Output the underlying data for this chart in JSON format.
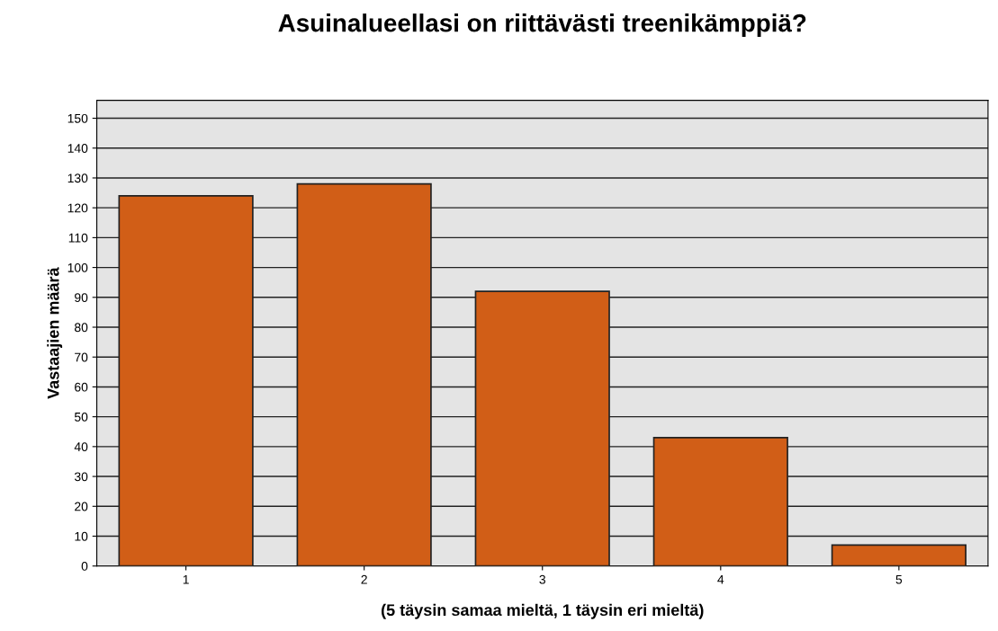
{
  "chart_data": {
    "type": "bar",
    "title": "Asuinalueellasi on riittävästi treenikämppiä?",
    "xlabel": "(5 täysin samaa mieltä, 1 täysin eri mieltä)",
    "ylabel": "Vastaajien määrä",
    "categories": [
      "1",
      "2",
      "3",
      "4",
      "5"
    ],
    "values": [
      124,
      128,
      92,
      43,
      7
    ],
    "color": "#d15e17",
    "ylim": [
      0,
      156
    ],
    "yticks": [
      0,
      10,
      20,
      30,
      40,
      50,
      60,
      70,
      80,
      90,
      100,
      110,
      120,
      130,
      140,
      150
    ],
    "grid": "y",
    "legend": false
  }
}
